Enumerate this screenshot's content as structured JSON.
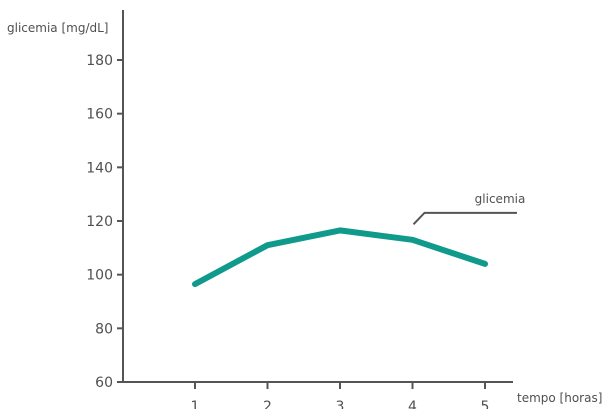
{
  "chart_data": {
    "type": "line",
    "title": "",
    "ylabel": "glicemia [mg/dL]",
    "xlabel": "tempo [horas]",
    "x": [
      1,
      2,
      3,
      4,
      5
    ],
    "y_ticks": [
      60,
      80,
      100,
      120,
      140,
      160,
      180
    ],
    "ylim": [
      60,
      190
    ],
    "xlim": [
      0,
      5.9
    ],
    "grid": false,
    "series": [
      {
        "name": "glicemia",
        "x": [
          1,
          2,
          3,
          4,
          5
        ],
        "values": [
          96.5,
          111,
          116.5,
          113,
          104
        ]
      }
    ],
    "annotation": {
      "text": "glicemia",
      "points_to": {
        "x": 4,
        "y": 119.5
      }
    },
    "colors": {
      "line": "#0f9a8c",
      "axis": "#555555",
      "text": "#505050"
    }
  }
}
